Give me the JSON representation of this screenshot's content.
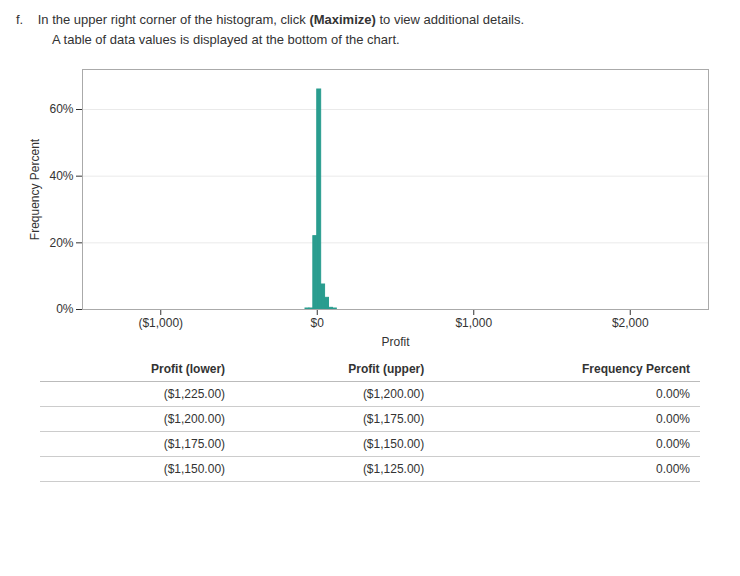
{
  "chart_data": {
    "type": "histogram",
    "annotations": [
      "f.",
      "In the upper right corner of the histogram, click",
      "(Maximize)",
      "to view additional details.",
      "A table of data values is displayed at the bottom of the chart."
    ],
    "xlabel": "Profit",
    "ylabel": "Frequency Percent",
    "bins": [
      -75,
      -50,
      -25,
      0,
      25,
      50,
      75,
      100,
      125
    ],
    "values": [
      0.3,
      0.3,
      22.0,
      66.0,
      7.5,
      3.5,
      0.5,
      0.3
    ],
    "color": "#2a9d8f",
    "xlim": [
      -1500,
      2500
    ],
    "xticks": [
      {
        "value": -1000,
        "label": "($1,000)"
      },
      {
        "value": 0,
        "label": "$0"
      },
      {
        "value": 1000,
        "label": "$1,000"
      },
      {
        "value": 2000,
        "label": "$2,000"
      }
    ],
    "ylim": [
      0,
      72
    ],
    "yticks": [
      {
        "value": 0,
        "label": "0%"
      },
      {
        "value": 20,
        "label": "20%"
      },
      {
        "value": 40,
        "label": "40%"
      },
      {
        "value": 60,
        "label": "60%"
      }
    ],
    "grid": true,
    "table": {
      "headers": [
        "Profit (lower)",
        "Profit (upper)",
        "Frequency Percent"
      ],
      "rows": [
        [
          "($1,225.00)",
          "($1,200.00)",
          "0.00%"
        ],
        [
          "($1,200.00)",
          "($1,175.00)",
          "0.00%"
        ],
        [
          "($1,175.00)",
          "($1,150.00)",
          "0.00%"
        ],
        [
          "($1,150.00)",
          "($1,125.00)",
          "0.00%"
        ]
      ]
    }
  }
}
